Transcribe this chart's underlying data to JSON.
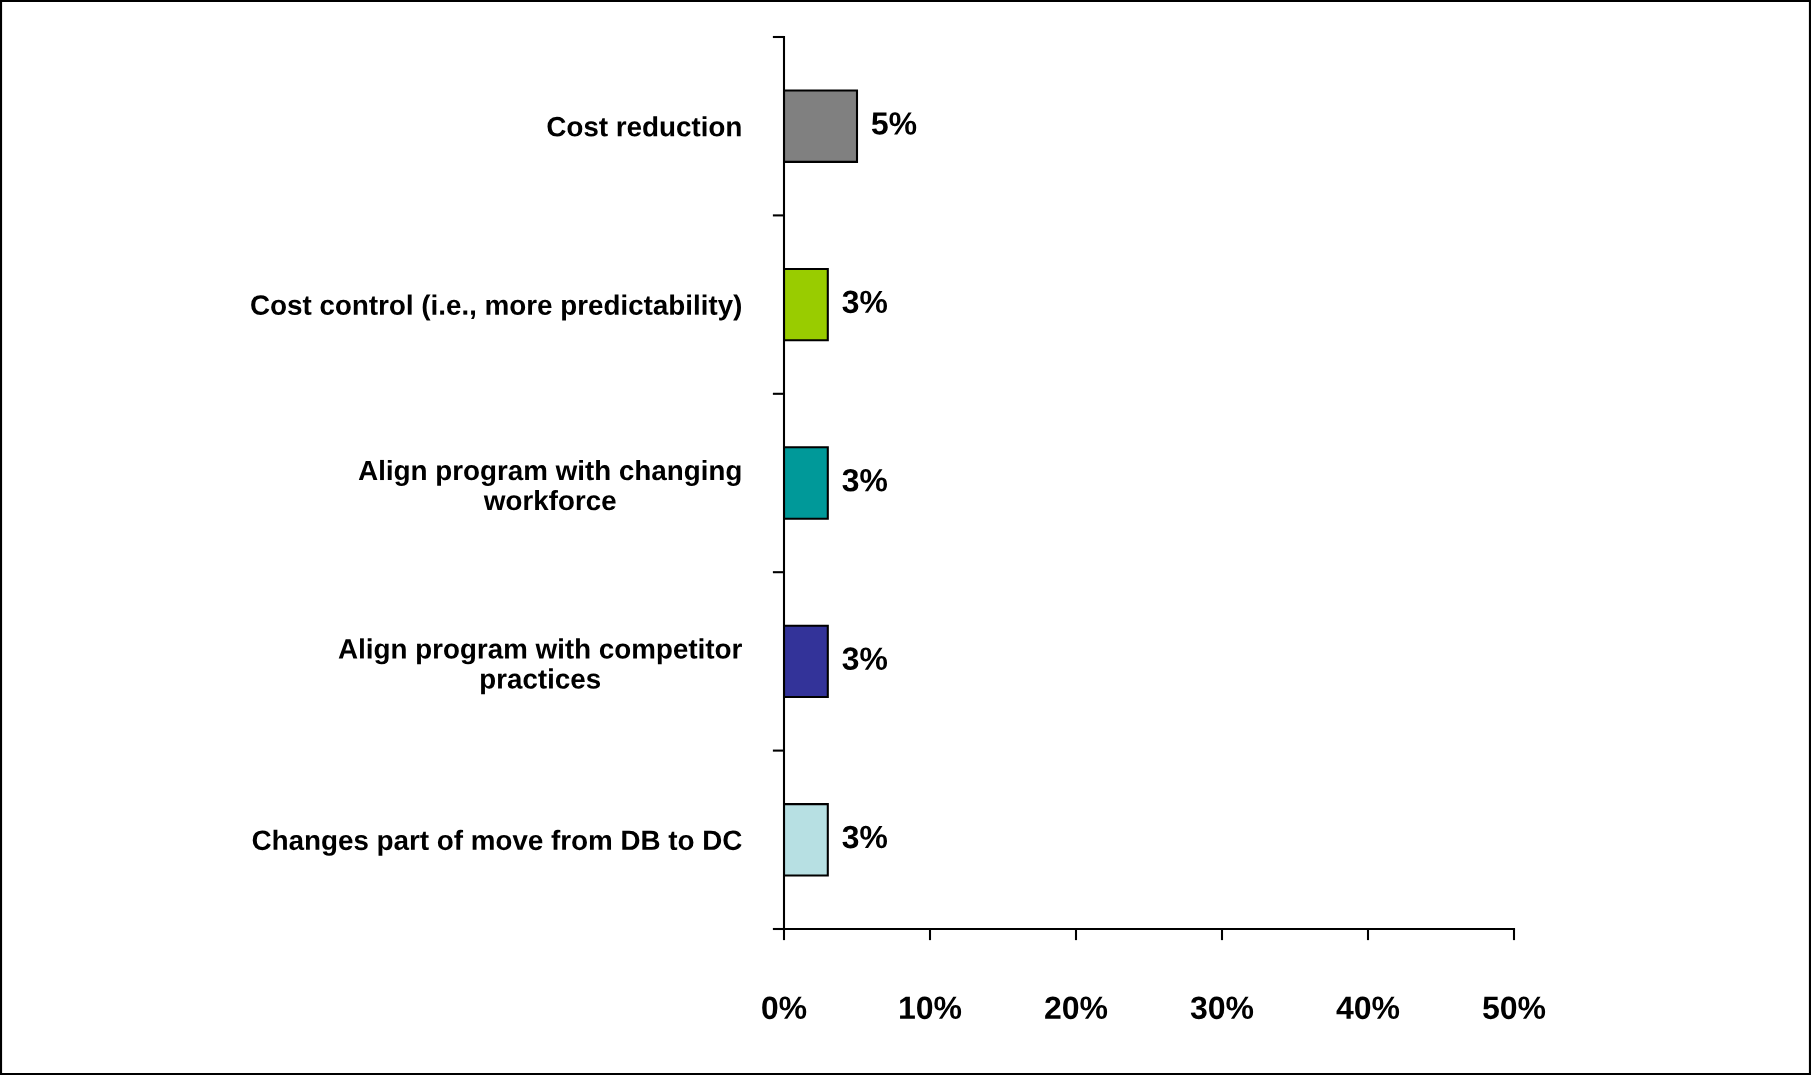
{
  "chart_data": {
    "type": "bar",
    "orientation": "horizontal",
    "categories": [
      "Cost reduction",
      "Cost control (i.e., more predictability)",
      "Align program with changing\nworkforce",
      "Align program with competitor\npractices",
      "Changes part of move from DB to DC"
    ],
    "values": [
      5,
      3,
      3,
      3,
      3
    ],
    "colors": [
      "#808080",
      "#99cc00",
      "#009999",
      "#333399",
      "#b7e0e3"
    ],
    "value_labels": [
      "5%",
      "3%",
      "3%",
      "3%",
      "3%"
    ],
    "xlim": [
      0,
      50
    ],
    "xticks": [
      {
        "value": 0,
        "label": "0%"
      },
      {
        "value": 10,
        "label": "10%"
      },
      {
        "value": 20,
        "label": "20%"
      },
      {
        "value": 30,
        "label": "30%"
      },
      {
        "value": 40,
        "label": "40%"
      },
      {
        "value": 50,
        "label": "50%"
      }
    ],
    "grid": false,
    "legend": false
  }
}
